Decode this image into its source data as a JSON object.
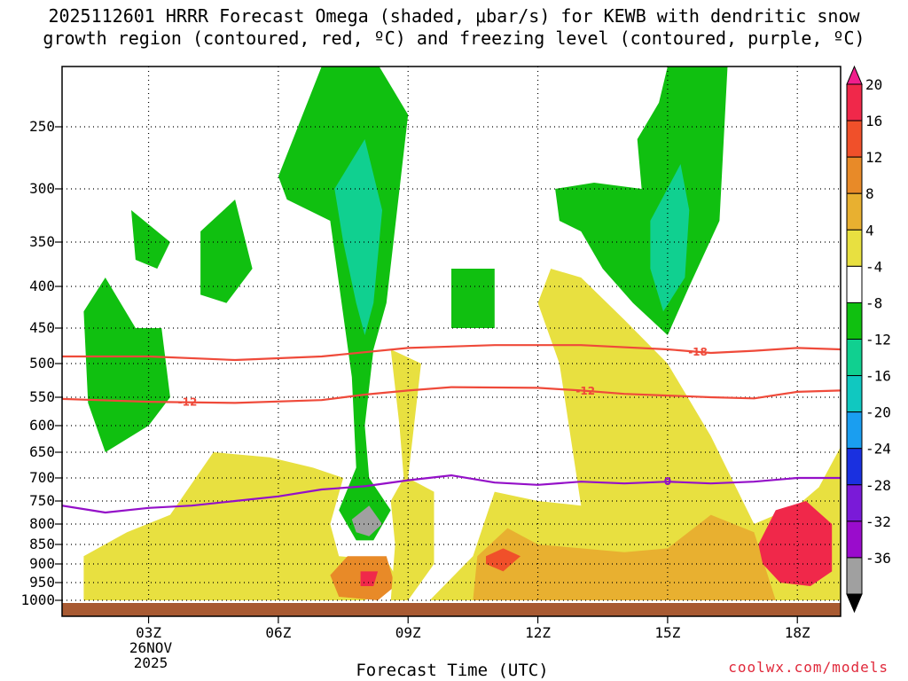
{
  "title_line1": "2025112601 HRRR Forecast Omega (shaded, μbar/s) for KEWB with dendritic snow",
  "title_line2": "growth region (contoured, red, ºC) and freezing level (contoured, purple, ºC)",
  "credit": "coolwx.com/models",
  "chart_data": {
    "type": "heatmap",
    "title": "2025112601 HRRR Forecast Omega (shaded, μbar/s) for KEWB with dendritic snow growth region (contoured, red, ºC) and freezing level (contoured, purple, ºC)",
    "xlabel": "Forecast Time (UTC)",
    "ylabel": "",
    "x_range_hours": [
      1,
      19
    ],
    "y_range_hpa": [
      200,
      1000
    ],
    "x_ticks": [
      {
        "hour": 3,
        "label": "03Z"
      },
      {
        "hour": 6,
        "label": "06Z"
      },
      {
        "hour": 9,
        "label": "09Z"
      },
      {
        "hour": 12,
        "label": "12Z"
      },
      {
        "hour": 15,
        "label": "15Z"
      },
      {
        "hour": 18,
        "label": "18Z"
      }
    ],
    "date_label": [
      "26NOV",
      "2025"
    ],
    "y_ticks": [
      250,
      300,
      350,
      400,
      450,
      500,
      550,
      600,
      650,
      700,
      750,
      800,
      850,
      900,
      950,
      1000
    ],
    "colorbar": {
      "levels": [
        -36,
        -32,
        -28,
        -24,
        -20,
        -16,
        -12,
        -8,
        -4,
        4,
        8,
        12,
        16,
        20
      ],
      "colors": [
        "#000000",
        "#a0a0a0",
        "#9a0ccc",
        "#7a1ad8",
        "#1a30e0",
        "#1a9ef0",
        "#10c8c0",
        "#10d090",
        "#10c010",
        "#ffffff",
        "#e8e040",
        "#e8b030",
        "#e88a28",
        "#f0502a",
        "#f0284a",
        "#f01e8c"
      ]
    },
    "omega_regions": [
      {
        "name": "ascent-column-08z",
        "points": [
          [
            6.0,
            290
          ],
          [
            7.0,
            200
          ],
          [
            8.0,
            180
          ],
          [
            9.0,
            240
          ],
          [
            8.5,
            420
          ],
          [
            8.2,
            480
          ],
          [
            8.0,
            600
          ],
          [
            8.1,
            700
          ],
          [
            8.6,
            770
          ],
          [
            8.2,
            840
          ],
          [
            7.8,
            840
          ],
          [
            7.4,
            770
          ],
          [
            7.8,
            680
          ],
          [
            7.7,
            520
          ],
          [
            7.2,
            330
          ],
          [
            6.2,
            310
          ]
        ],
        "value": -6
      },
      {
        "name": "ascent-core-08z",
        "points": [
          [
            7.3,
            300
          ],
          [
            8.0,
            260
          ],
          [
            8.4,
            320
          ],
          [
            8.2,
            420
          ],
          [
            8.0,
            460
          ],
          [
            7.8,
            420
          ],
          [
            7.5,
            350
          ]
        ],
        "value": -10
      },
      {
        "name": "ascent-left-03z",
        "points": [
          [
            1.5,
            430
          ],
          [
            2.0,
            390
          ],
          [
            2.7,
            450
          ],
          [
            3.3,
            450
          ],
          [
            3.5,
            550
          ],
          [
            3.0,
            600
          ],
          [
            2.0,
            650
          ],
          [
            1.6,
            560
          ]
        ],
        "value": -6
      },
      {
        "name": "ascent-upper-02z",
        "points": [
          [
            2.6,
            320
          ],
          [
            3.5,
            350
          ],
          [
            3.2,
            380
          ],
          [
            2.7,
            370
          ]
        ],
        "value": -6
      },
      {
        "name": "ascent-upper-04z",
        "points": [
          [
            4.2,
            340
          ],
          [
            5.0,
            310
          ],
          [
            5.4,
            380
          ],
          [
            4.8,
            420
          ],
          [
            4.2,
            410
          ]
        ],
        "value": -6
      },
      {
        "name": "ascent-box-10z",
        "points": [
          [
            10.0,
            380
          ],
          [
            11.0,
            380
          ],
          [
            11.0,
            450
          ],
          [
            10.0,
            450
          ]
        ],
        "value": -6
      },
      {
        "name": "ascent-right-15z",
        "points": [
          [
            12.4,
            300
          ],
          [
            13.3,
            295
          ],
          [
            14.4,
            300
          ],
          [
            14.3,
            260
          ],
          [
            14.8,
            230
          ],
          [
            15.0,
            200
          ],
          [
            16.4,
            190
          ],
          [
            16.2,
            330
          ],
          [
            15.5,
            400
          ],
          [
            15.0,
            460
          ],
          [
            14.2,
            420
          ],
          [
            13.5,
            380
          ],
          [
            13.0,
            340
          ],
          [
            12.5,
            330
          ]
        ],
        "value": -6
      },
      {
        "name": "ascent-core-15z",
        "points": [
          [
            14.6,
            330
          ],
          [
            15.3,
            280
          ],
          [
            15.5,
            320
          ],
          [
            15.4,
            390
          ],
          [
            14.9,
            430
          ],
          [
            14.6,
            380
          ]
        ],
        "value": -10
      },
      {
        "name": "subsidence-low-left",
        "points": [
          [
            1.5,
            880
          ],
          [
            2.5,
            820
          ],
          [
            3.5,
            780
          ],
          [
            4.5,
            650
          ],
          [
            5.8,
            660
          ],
          [
            6.8,
            680
          ],
          [
            7.5,
            700
          ],
          [
            7.2,
            800
          ],
          [
            7.4,
            880
          ],
          [
            8.5,
            890
          ],
          [
            8.8,
            950
          ],
          [
            8.0,
            1000
          ],
          [
            1.5,
            1000
          ]
        ],
        "value": 5
      },
      {
        "name": "subsidence-mid-08z",
        "points": [
          [
            7.6,
            880
          ],
          [
            8.5,
            880
          ],
          [
            8.7,
            960
          ],
          [
            8.3,
            1000
          ],
          [
            7.4,
            990
          ],
          [
            7.2,
            930
          ]
        ],
        "value": 13
      },
      {
        "name": "subsidence-band-09z",
        "points": [
          [
            8.6,
            480
          ],
          [
            9.3,
            500
          ],
          [
            9.0,
            700
          ],
          [
            9.6,
            730
          ],
          [
            9.6,
            900
          ],
          [
            9.0,
            1000
          ],
          [
            8.6,
            1000
          ],
          [
            8.7,
            850
          ],
          [
            8.6,
            750
          ],
          [
            8.9,
            700
          ],
          [
            8.8,
            600
          ]
        ],
        "value": 5
      },
      {
        "name": "subsidence-low-right",
        "points": [
          [
            9.5,
            1000
          ],
          [
            10.5,
            880
          ],
          [
            11.0,
            730
          ],
          [
            12.0,
            750
          ],
          [
            13.0,
            760
          ],
          [
            12.5,
            500
          ],
          [
            12.0,
            420
          ],
          [
            12.3,
            380
          ],
          [
            13.0,
            390
          ],
          [
            14.0,
            440
          ],
          [
            15.0,
            500
          ],
          [
            16.0,
            620
          ],
          [
            17.0,
            800
          ],
          [
            18.0,
            760
          ],
          [
            18.5,
            720
          ],
          [
            19.0,
            640
          ],
          [
            19.0,
            1000
          ]
        ],
        "value": 6
      },
      {
        "name": "subsidence-strong-11z",
        "points": [
          [
            10.5,
            1000
          ],
          [
            10.6,
            880
          ],
          [
            11.3,
            810
          ],
          [
            12.0,
            850
          ],
          [
            13.0,
            860
          ],
          [
            14.0,
            870
          ],
          [
            15.0,
            860
          ],
          [
            16.0,
            780
          ],
          [
            17.0,
            820
          ],
          [
            17.5,
            1000
          ]
        ],
        "value": 10
      },
      {
        "name": "subsidence-core-18z",
        "points": [
          [
            17.1,
            850
          ],
          [
            17.5,
            770
          ],
          [
            18.2,
            750
          ],
          [
            18.8,
            800
          ],
          [
            18.8,
            920
          ],
          [
            18.3,
            960
          ],
          [
            17.6,
            950
          ],
          [
            17.2,
            900
          ]
        ],
        "value": 22
      },
      {
        "name": "subsidence-core-11z",
        "points": [
          [
            10.8,
            880
          ],
          [
            11.2,
            860
          ],
          [
            11.6,
            880
          ],
          [
            11.2,
            920
          ],
          [
            10.8,
            900
          ]
        ],
        "value": 17
      },
      {
        "name": "subsidence-core-08z",
        "points": [
          [
            7.9,
            920
          ],
          [
            8.3,
            920
          ],
          [
            8.2,
            960
          ],
          [
            7.9,
            960
          ]
        ],
        "value": 21
      },
      {
        "name": "ascent-extreme-08z",
        "points": [
          [
            7.7,
            790
          ],
          [
            8.1,
            760
          ],
          [
            8.4,
            800
          ],
          [
            8.1,
            830
          ],
          [
            7.8,
            820
          ]
        ],
        "value": -34
      }
    ],
    "dgz_contours": [
      {
        "label": "-18",
        "level": -18,
        "points": [
          [
            1,
            490
          ],
          [
            3,
            490
          ],
          [
            5,
            495
          ],
          [
            7,
            490
          ],
          [
            9,
            478
          ],
          [
            11,
            474
          ],
          [
            13,
            474
          ],
          [
            15,
            480
          ],
          [
            16,
            485
          ],
          [
            17,
            482
          ],
          [
            18,
            478
          ],
          [
            19,
            480
          ]
        ]
      },
      {
        "label": "-12",
        "level": -12,
        "points": [
          [
            1,
            553
          ],
          [
            3,
            558
          ],
          [
            5,
            560
          ],
          [
            7,
            555
          ],
          [
            8,
            546
          ],
          [
            9,
            540
          ],
          [
            10,
            535
          ],
          [
            12,
            536
          ],
          [
            13,
            540
          ],
          [
            14,
            545
          ],
          [
            16,
            550
          ],
          [
            17,
            552
          ],
          [
            18,
            542
          ],
          [
            19,
            540
          ]
        ]
      }
    ],
    "freezing_contour": {
      "label": "0",
      "level": 0,
      "points": [
        [
          1,
          760
        ],
        [
          2,
          775
        ],
        [
          3,
          765
        ],
        [
          4,
          760
        ],
        [
          5,
          750
        ],
        [
          6,
          740
        ],
        [
          7,
          725
        ],
        [
          8,
          718
        ],
        [
          9,
          705
        ],
        [
          10,
          695
        ],
        [
          11,
          710
        ],
        [
          12,
          715
        ],
        [
          13,
          708
        ],
        [
          14,
          712
        ],
        [
          15,
          708
        ],
        [
          16,
          712
        ],
        [
          17,
          708
        ],
        [
          18,
          700
        ],
        [
          19,
          700
        ]
      ]
    },
    "ground_color": "#a85a32"
  }
}
